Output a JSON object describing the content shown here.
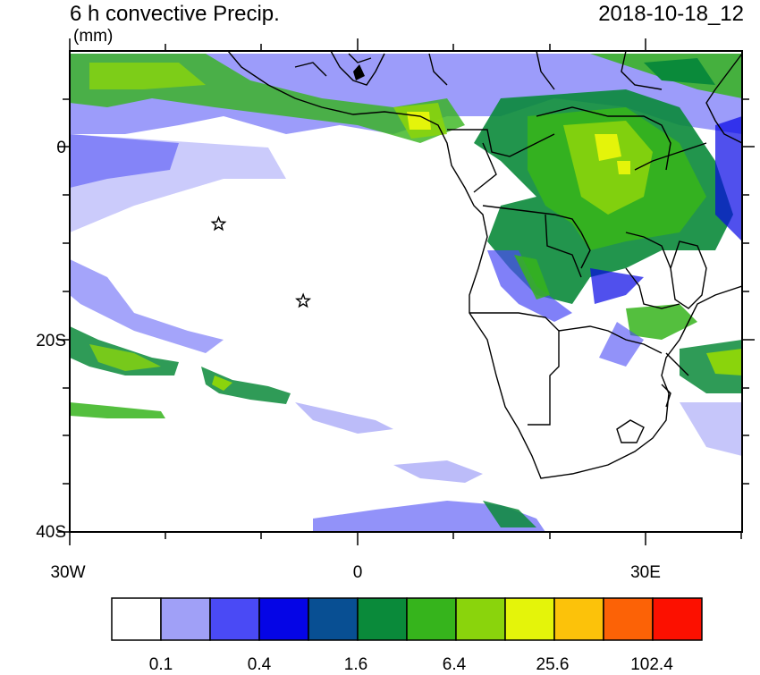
{
  "title": "6 h convective Precip.",
  "datetime": "2018-10-18_12",
  "units": "(mm)",
  "axes": {
    "lon_ticks": [
      {
        "label": "30W",
        "value": -30
      },
      {
        "label": "0",
        "value": 0
      },
      {
        "label": "30E",
        "value": 30
      }
    ],
    "lat_ticks": [
      {
        "label": "0",
        "value": 0
      },
      {
        "label": "20S",
        "value": -20
      },
      {
        "label": "40S",
        "value": -40
      }
    ],
    "lon_range": [
      -30,
      40
    ],
    "lat_range": [
      -40,
      10
    ]
  },
  "colorbar": {
    "labels": [
      "0.1",
      "0.4",
      "1.6",
      "6.4",
      "25.6",
      "102.4"
    ],
    "colors": [
      "#ffffff",
      "#a0a0f7",
      "#4a4af5",
      "#0505e6",
      "#084f93",
      "#0a8a3a",
      "#36b41c",
      "#8ad40c",
      "#e4f40a",
      "#fcc20a",
      "#fc6206",
      "#fc1000"
    ]
  },
  "markers": [
    {
      "type": "star",
      "lon": -14.5,
      "lat": -8
    },
    {
      "type": "star",
      "lon": -5.7,
      "lat": -16
    }
  ]
}
